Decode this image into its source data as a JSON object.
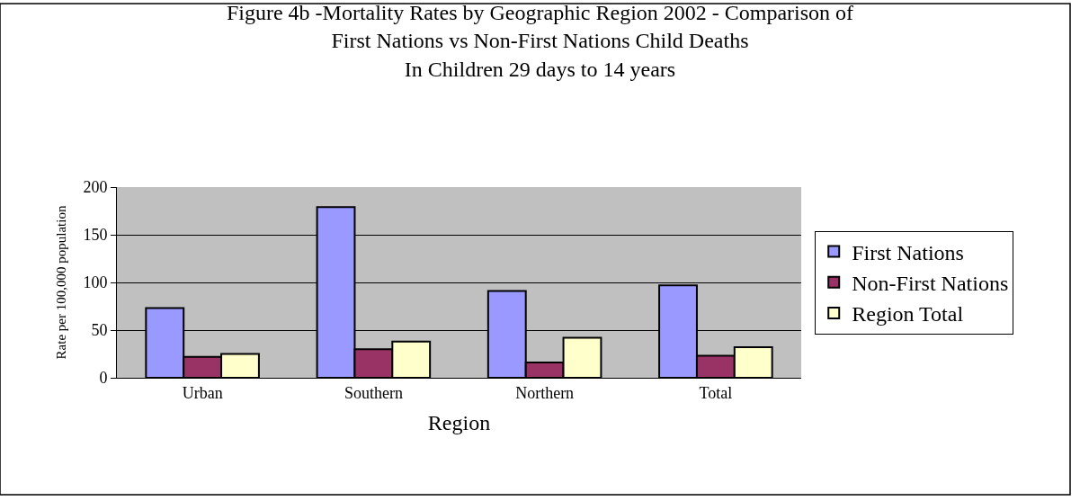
{
  "chart_data": {
    "type": "bar",
    "title": "Figure 4b -Mortality Rates by Geographic Region 2002 - Comparison of\nFirst Nations vs Non-First Nations Child Deaths\nIn Children 29 days to 14 years",
    "xlabel": "Region",
    "ylabel": "Rate per 100,000 population",
    "categories": [
      "Urban",
      "Southern",
      "Northern",
      "Total"
    ],
    "series": [
      {
        "name": "First Nations",
        "color": "#9999ff",
        "values": [
          73,
          179,
          91,
          97
        ]
      },
      {
        "name": "Non-First Nations",
        "color": "#993366",
        "values": [
          22,
          30,
          16,
          23
        ]
      },
      {
        "name": "Region Total",
        "color": "#ffffcc",
        "values": [
          25,
          38,
          42,
          32
        ]
      }
    ],
    "ylim": [
      0,
      200
    ],
    "yticks": [
      0,
      50,
      100,
      150,
      200
    ],
    "grid": "y",
    "legend": "right"
  }
}
